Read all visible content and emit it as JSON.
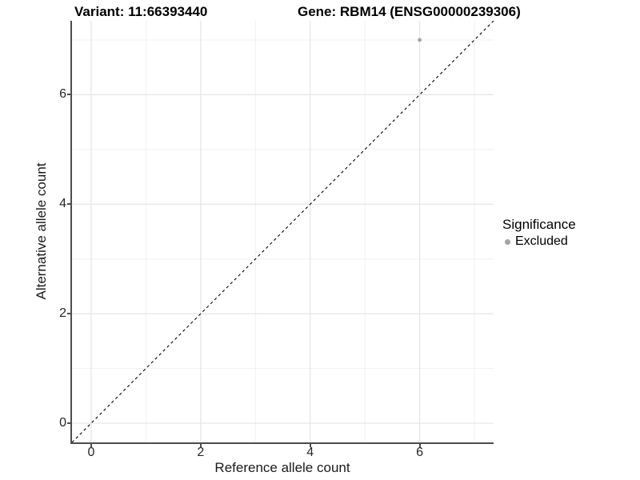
{
  "titles": {
    "left": "Variant: 11:66393440",
    "right": "Gene: RBM14 (ENSG00000239306)"
  },
  "legend": {
    "title": "Significance",
    "items": [
      {
        "label": "Excluded",
        "color": "#a5a5a5"
      }
    ]
  },
  "chart_data": {
    "type": "scatter",
    "title": "Variant: 11:66393440   Gene: RBM14 (ENSG00000239306)",
    "xlabel": "Reference allele count",
    "ylabel": "Alternative allele count",
    "xlim": [
      -0.35,
      7.35
    ],
    "ylim": [
      -0.35,
      7.35
    ],
    "xticks": [
      0,
      2,
      4,
      6
    ],
    "yticks": [
      0,
      2,
      4,
      6
    ],
    "minor_xticks": [
      1,
      3,
      5,
      7
    ],
    "minor_yticks": [
      1,
      3,
      5,
      7
    ],
    "grid": true,
    "legend_position": "right",
    "series": [
      {
        "name": "Excluded",
        "points": [
          {
            "x": 6,
            "y": 7
          }
        ],
        "color": "#a5a5a5"
      }
    ],
    "reference_line": {
      "description": "identity line y = x",
      "from": [
        -0.35,
        -0.35
      ],
      "to": [
        7.35,
        7.35
      ],
      "style": "dashed",
      "color": "#000000"
    },
    "colors": {
      "grid_major": "#e4e4e4",
      "grid_minor": "#f1f1f1",
      "axis_line": "#4d4d4d",
      "tick_text": "#262626",
      "background": "#ffffff"
    }
  }
}
